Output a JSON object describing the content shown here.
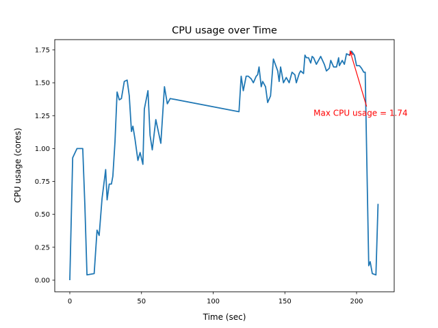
{
  "chart_data": {
    "type": "line",
    "title": "CPU usage over Time",
    "xlabel": "Time (sec)",
    "ylabel": "CPU usage (cores)",
    "xlim": [
      -10.5,
      226
    ],
    "ylim": [
      -0.087,
      1.83
    ],
    "xticks": [
      0,
      50,
      100,
      150,
      200
    ],
    "xtick_labels": [
      "0",
      "50",
      "100",
      "150",
      "200"
    ],
    "yticks": [
      0,
      0.25,
      0.5,
      0.75,
      1.0,
      1.25,
      1.5,
      1.75
    ],
    "ytick_labels": [
      "0.00",
      "0.25",
      "0.50",
      "0.75",
      "1.00",
      "1.25",
      "1.50",
      "1.75"
    ],
    "grid": false,
    "series": [
      {
        "name": "CPU usage",
        "color": "#1f77b4",
        "x": [
          0,
          2,
          5,
          9,
          10.5,
          12,
          17,
          19,
          20.5,
          22.5,
          25,
          26,
          27.5,
          29,
          30,
          31.5,
          33,
          34.5,
          36,
          38,
          40,
          41.5,
          43,
          44,
          45.5,
          47.5,
          49,
          51,
          52,
          54.5,
          56,
          57.5,
          60,
          63.5,
          66,
          68,
          70,
          118,
          119.5,
          121,
          123,
          124.5,
          126.5,
          128,
          130,
          131,
          132,
          133.5,
          134.5,
          136.5,
          138,
          140,
          142,
          145,
          146,
          147,
          149,
          151,
          153,
          155,
          157,
          158,
          160,
          161,
          163,
          164,
          165,
          166.5,
          168,
          169,
          170,
          172,
          175,
          177.5,
          179,
          181,
          182,
          184,
          186,
          187.5,
          188,
          190,
          191.5,
          193,
          195,
          196.5,
          198.5,
          200,
          202,
          203.5,
          205,
          206,
          208.5,
          209.5,
          211,
          213.5,
          215
        ],
        "y": [
          0,
          0.93,
          1.0,
          1.0,
          0.57,
          0.04,
          0.05,
          0.38,
          0.34,
          0.62,
          0.84,
          0.61,
          0.73,
          0.73,
          0.79,
          1.05,
          1.43,
          1.37,
          1.38,
          1.51,
          1.52,
          1.4,
          1.13,
          1.17,
          1.07,
          0.91,
          0.97,
          0.88,
          1.3,
          1.44,
          1.1,
          0.99,
          1.22,
          1.04,
          1.47,
          1.34,
          1.38,
          1.28,
          1.55,
          1.44,
          1.55,
          1.55,
          1.53,
          1.5,
          1.55,
          1.56,
          1.62,
          1.47,
          1.51,
          1.47,
          1.35,
          1.4,
          1.68,
          1.59,
          1.51,
          1.62,
          1.5,
          1.54,
          1.5,
          1.58,
          1.56,
          1.5,
          1.57,
          1.59,
          1.57,
          1.71,
          1.69,
          1.69,
          1.65,
          1.7,
          1.69,
          1.64,
          1.7,
          1.64,
          1.59,
          1.61,
          1.67,
          1.62,
          1.62,
          1.69,
          1.63,
          1.67,
          1.64,
          1.72,
          1.71,
          1.74,
          1.71,
          1.63,
          1.63,
          1.61,
          1.58,
          1.58,
          0.11,
          0.14,
          0.05,
          0.04,
          0.58
        ]
      }
    ],
    "annotation": {
      "text": "Max CPU usage = 1.74",
      "color": "#ff0000",
      "point": [
        195.5,
        1.74
      ],
      "text_pos": [
        170,
        1.27
      ]
    }
  }
}
